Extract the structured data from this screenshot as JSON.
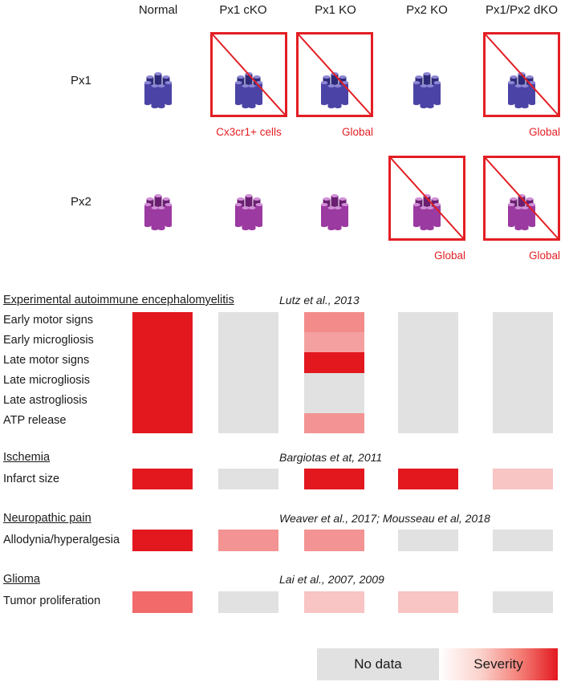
{
  "columns": [
    "Normal",
    "Px1 cKO",
    "Px1 KO",
    "Px2 KO",
    "Px1/Px2 dKO"
  ],
  "channel_rows": [
    {
      "label": "Px1",
      "color_dark": "#2e2a7a",
      "color_mid": "#4b44a6",
      "color_light": "#8d86d4"
    },
    {
      "label": "Px2",
      "color_dark": "#6a1f70",
      "color_mid": "#9b3aa0",
      "color_light": "#d08fd6"
    }
  ],
  "knockouts": {
    "px1": [
      {
        "col": 1,
        "label": "Cx3cr1+ cells"
      },
      {
        "col": 2,
        "label": "Global"
      },
      {
        "col": 4,
        "label": "Global"
      }
    ],
    "px2": [
      {
        "col": 3,
        "label": "Global"
      },
      {
        "col": 4,
        "label": "Global"
      }
    ]
  },
  "sections": [
    {
      "title": "Experimental autoimmune encephalomyelitis",
      "citation": "Lutz et al., 2013",
      "rows": [
        "Early motor signs",
        "Early microgliosis",
        "Late motor signs",
        "Late microgliosis",
        "Late astrogliosis",
        "ATP release"
      ]
    },
    {
      "title": "Ischemia",
      "citation": "Bargiotas et at, 2011",
      "rows": [
        "Infarct size"
      ]
    },
    {
      "title": "Neuropathic pain",
      "citation": "Weaver et al., 2017; Mousseau et al, 2018",
      "rows": [
        "Allodynia/hyperalgesia"
      ]
    },
    {
      "title": "Glioma",
      "citation": "Lai et al., 2007, 2009",
      "rows": [
        "Tumor proliferation"
      ]
    }
  ],
  "severity_grid": {
    "eae": [
      [
        "#e3181f",
        "#e1e1e1",
        "#f38b8b",
        "#e1e1e1",
        "#e1e1e1"
      ],
      [
        "#e3181f",
        "#e1e1e1",
        "#f5a0a0",
        "#e1e1e1",
        "#e1e1e1"
      ],
      [
        "#e3181f",
        "#e1e1e1",
        "#e3181f",
        "#e1e1e1",
        "#e1e1e1"
      ],
      [
        "#e3181f",
        "#e1e1e1",
        "#e1e1e1",
        "#e1e1e1",
        "#e1e1e1"
      ],
      [
        "#e3181f",
        "#e1e1e1",
        "#e1e1e1",
        "#e1e1e1",
        "#e1e1e1"
      ],
      [
        "#e3181f",
        "#e1e1e1",
        "#f39393",
        "#e1e1e1",
        "#e1e1e1"
      ]
    ],
    "ischemia": [
      [
        "#e3181f",
        "#e1e1e1",
        "#e3181f",
        "#e3181f",
        "#f8c4c4"
      ]
    ],
    "pain": [
      [
        "#e3181f",
        "#f39393",
        "#f39393",
        "#e1e1e1",
        "#e1e1e1"
      ]
    ],
    "glioma": [
      [
        "#f26a6a",
        "#e1e1e1",
        "#f8c4c4",
        "#f8c4c4",
        "#e1e1e1"
      ]
    ]
  },
  "legend": {
    "no_data": "No data",
    "severity": "Severity"
  }
}
